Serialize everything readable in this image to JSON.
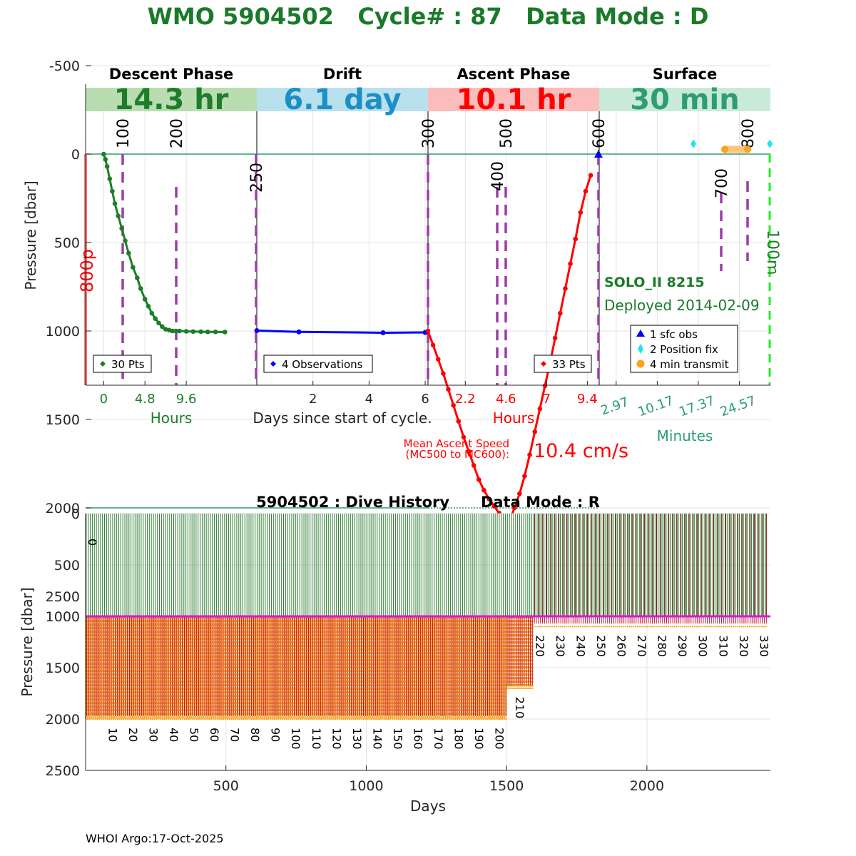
{
  "header": {
    "title": "WMO 5904502   Cycle# : 87   Data Mode : D"
  },
  "footer": {
    "text": "WHOI Argo:17-Oct-2025"
  },
  "colors": {
    "title": "#1a7a2a",
    "descent": "#1e7d2a",
    "drift": "#0000ff",
    "ascent": "#ff0000",
    "surface": "#2a9d72",
    "marker": "#9b3ea6",
    "orange": "#ffa11a",
    "cyan": "#19e6f0",
    "descent_band": "#b9dcb0",
    "drift_band": "#b9e0ed",
    "ascent_band": "#fbbcbc",
    "surface_band": "#c9ead9",
    "drift_text": "#1c8fc8",
    "surface_text": "#2e9d74"
  },
  "chart_data": [
    {
      "type": "line",
      "title": "Cycle profile",
      "ylabel": "Pressure [dbar]",
      "xlabel": "Days since start of cycle.",
      "ylim": [
        -750,
        2600
      ],
      "y_ticks": [
        "-500",
        "0",
        "500",
        "1000",
        "1500",
        "2000",
        "2500"
      ],
      "y_tick_values": [
        -500,
        0,
        500,
        1000,
        1500,
        2000,
        2500
      ],
      "phases": [
        {
          "name": "Descent Phase",
          "duration": "14.3 hr",
          "unit_label": "Hours",
          "ticks": [
            "0",
            "4.8",
            "9.6"
          ],
          "tick_values": [
            0,
            4.8,
            9.6
          ],
          "range": [
            -2.1,
            17.8
          ]
        },
        {
          "name": "Drift",
          "duration": "6.1 day",
          "ticks": [
            "2",
            "4",
            "6"
          ],
          "tick_values": [
            2,
            4,
            6
          ],
          "range": [
            0,
            6.1
          ]
        },
        {
          "name": "Ascent Phase",
          "duration": "10.1 hr",
          "unit_label": "Hours",
          "ticks": [
            "2.2",
            "4.6",
            "7",
            "9.4"
          ],
          "tick_values": [
            2.2,
            4.6,
            7,
            9.4
          ],
          "range": [
            0,
            10.1
          ]
        },
        {
          "name": "Surface",
          "duration": "30 min",
          "unit_label": "Minutes",
          "ticks": [
            "2.97",
            "10.17",
            "17.37",
            "24.57"
          ],
          "tick_values": [
            2.97,
            10.17,
            17.37,
            24.57
          ],
          "range": [
            0,
            30
          ]
        }
      ],
      "reference_lines": [
        0,
        2000
      ],
      "mission_codes": [
        "100",
        "200",
        "250",
        "300",
        "400",
        "500",
        "600",
        "700",
        "800"
      ],
      "side_labels": {
        "left": "800p",
        "right": "100m"
      },
      "float_info": {
        "name": "SOLO_II 8215",
        "deployed": "Deployed 2014-02-09"
      },
      "legends": {
        "descent": "30 Pts",
        "drift": "4 Observations",
        "ascent": "33 Pts"
      },
      "surface_legend": [
        "1 sfc obs",
        "2 Position fix",
        "4 min transmit"
      ],
      "ascent_speed": {
        "label_line1": "Mean Ascent Speed",
        "label_line2": "(MC500 to MC600):",
        "value": "10.4 cm/s"
      },
      "series": [
        {
          "name": "Descent",
          "x_hours": [
            0,
            0.2,
            0.4,
            0.7,
            1.0,
            1.3,
            1.7,
            2.1,
            2.5,
            2.9,
            3.4,
            3.9,
            4.3,
            4.8,
            5.2,
            5.6,
            6.0,
            6.4,
            6.8,
            7.2,
            7.6,
            8.0,
            8.4,
            8.8,
            9.6,
            10.4,
            11.3,
            12.1,
            13.0,
            14.1
          ],
          "pressure": [
            0,
            30,
            70,
            140,
            210,
            280,
            350,
            420,
            490,
            560,
            640,
            700,
            760,
            820,
            860,
            900,
            930,
            955,
            975,
            990,
            995,
            1000,
            1000,
            1000,
            1002,
            1003,
            1004,
            1005,
            1005,
            1006
          ]
        },
        {
          "name": "Drift",
          "x_days": [
            0.0,
            1.5,
            4.5,
            6.0
          ],
          "pressure": [
            998,
            1005,
            1010,
            1008
          ]
        },
        {
          "name": "Ascent",
          "x_hours": [
            0,
            0.3,
            0.6,
            0.9,
            1.2,
            1.5,
            1.8,
            2.1,
            2.4,
            2.7,
            3.0,
            3.3,
            3.6,
            3.9,
            4.2,
            4.5,
            4.8,
            5.1,
            5.4,
            5.7,
            6.0,
            6.3,
            6.6,
            6.9,
            7.2,
            7.5,
            7.8,
            8.1,
            8.4,
            8.7,
            9.0,
            9.3,
            9.6
          ],
          "pressure": [
            1000,
            1080,
            1160,
            1240,
            1330,
            1420,
            1510,
            1600,
            1680,
            1760,
            1840,
            1900,
            1950,
            1990,
            2030,
            2060,
            2075,
            2000,
            1920,
            1820,
            1700,
            1570,
            1440,
            1310,
            1180,
            1040,
            900,
            760,
            620,
            480,
            330,
            210,
            120
          ]
        }
      ],
      "surface_obs": [
        {
          "minutes": 30,
          "pressure": 0
        }
      ],
      "position_fixes": [
        {
          "minutes": 16.5,
          "pressure": -50
        },
        {
          "minutes": 29.9,
          "pressure": -50
        }
      ],
      "transmit": {
        "start_min": 22.0,
        "end_min": 26.0,
        "pressure": 50
      }
    },
    {
      "type": "line",
      "title": "5904502 : Dive History      Data Mode : R",
      "xlabel": "Days",
      "ylabel": "Pressure [dbar]",
      "xlim": [
        0,
        2440
      ],
      "ylim": [
        0,
        2500
      ],
      "x_ticks": [
        "500",
        "1000",
        "1500",
        "2000"
      ],
      "x_tick_values": [
        500,
        1000,
        1500,
        2000
      ],
      "y_ticks": [
        "0",
        "500",
        "1000",
        "1500",
        "2000",
        "2500"
      ],
      "y_tick_values": [
        0,
        500,
        1000,
        1500,
        2000,
        2500
      ],
      "cycle_labels": [
        "0",
        "10",
        "20",
        "30",
        "40",
        "50",
        "60",
        "70",
        "80",
        "90",
        "100",
        "110",
        "120",
        "130",
        "140",
        "150",
        "160",
        "170",
        "180",
        "190",
        "200",
        "210",
        "220",
        "230",
        "240",
        "250",
        "260",
        "270",
        "280",
        "290",
        "300",
        "310",
        "320",
        "330"
      ],
      "num_cycles": 335,
      "cycle_interval_days": 7.25,
      "park_pressure": 1000,
      "profile_pressure": [
        {
          "cycles": [
            0,
            206
          ],
          "pressure": 2000
        },
        {
          "cycles": [
            207,
            219
          ],
          "pressure": 1700
        },
        {
          "cycles": [
            220,
            334
          ],
          "pressure": 1100
        }
      ]
    }
  ]
}
